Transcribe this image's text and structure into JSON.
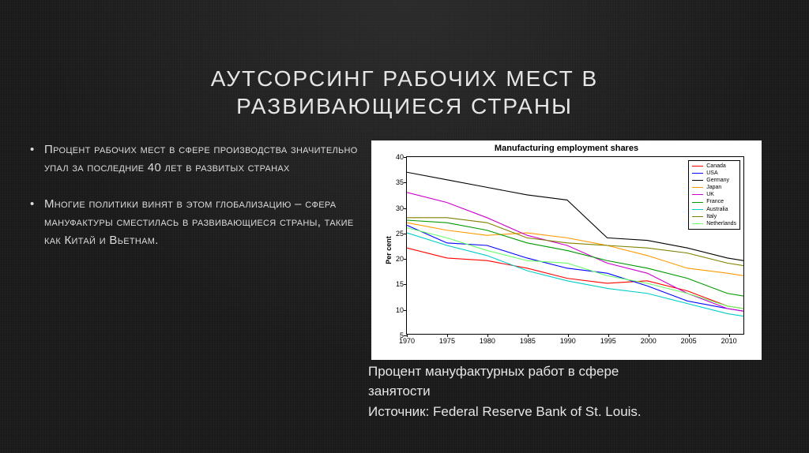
{
  "title_line1": "АУТСОРСИНГ РАБОЧИХ МЕСТ В",
  "title_line2": "РАЗВИВАЮЩИЕСЯ СТРАНЫ",
  "bullets": [
    "Процент  рабочих мест в сфере производства значительно упал за последние 40 лет в развитых странах",
    "Многие политики винят в этом глобализацию – сфера мануфактуры сместилась в развивающиеся страны, такие как Китай и Вьетнам."
  ],
  "caption_line1": "Процент мануфактурных работ в сфере",
  "caption_line2": "занятости",
  "caption_line3": "Источник: Federal Reserve Bank of St. Louis.",
  "chart": {
    "type": "line",
    "title": "Manufacturing employment shares",
    "ylabel": "Per cent",
    "ylim": [
      5,
      40
    ],
    "ytick_step": 5,
    "xlim": [
      1970,
      2012
    ],
    "xticks": [
      1970,
      1975,
      1980,
      1985,
      1990,
      1995,
      2000,
      2005,
      2010
    ],
    "background_color": "#ffffff",
    "axis_color": "#000000",
    "line_width": 1.1,
    "legend_position": "top-right",
    "series": [
      {
        "name": "Canada",
        "color": "#ff0000",
        "data": [
          [
            1970,
            22.0
          ],
          [
            1975,
            20.0
          ],
          [
            1980,
            19.5
          ],
          [
            1985,
            18.0
          ],
          [
            1990,
            16.0
          ],
          [
            1995,
            15.0
          ],
          [
            2000,
            15.5
          ],
          [
            2005,
            13.5
          ],
          [
            2010,
            10.5
          ],
          [
            2012,
            10.0
          ]
        ]
      },
      {
        "name": "USA",
        "color": "#0000ff",
        "data": [
          [
            1970,
            26.5
          ],
          [
            1975,
            23.0
          ],
          [
            1980,
            22.5
          ],
          [
            1985,
            20.0
          ],
          [
            1990,
            18.0
          ],
          [
            1995,
            17.0
          ],
          [
            2000,
            14.5
          ],
          [
            2005,
            11.5
          ],
          [
            2010,
            10.0
          ],
          [
            2012,
            9.5
          ]
        ]
      },
      {
        "name": "Germany",
        "color": "#000000",
        "data": [
          [
            1970,
            37.0
          ],
          [
            1975,
            35.5
          ],
          [
            1980,
            34.0
          ],
          [
            1985,
            32.5
          ],
          [
            1990,
            31.5
          ],
          [
            1991,
            30.0
          ],
          [
            1995,
            24.0
          ],
          [
            2000,
            23.5
          ],
          [
            2005,
            22.0
          ],
          [
            2010,
            20.0
          ],
          [
            2012,
            19.5
          ]
        ]
      },
      {
        "name": "Japan",
        "color": "#ff9900",
        "data": [
          [
            1970,
            27.0
          ],
          [
            1975,
            25.5
          ],
          [
            1980,
            24.5
          ],
          [
            1985,
            25.0
          ],
          [
            1990,
            24.0
          ],
          [
            1995,
            22.5
          ],
          [
            2000,
            20.5
          ],
          [
            2005,
            18.0
          ],
          [
            2010,
            17.0
          ],
          [
            2012,
            16.5
          ]
        ]
      },
      {
        "name": "UK",
        "color": "#cc00cc",
        "data": [
          [
            1970,
            33.0
          ],
          [
            1975,
            31.0
          ],
          [
            1980,
            28.0
          ],
          [
            1985,
            24.5
          ],
          [
            1990,
            22.5
          ],
          [
            1995,
            19.0
          ],
          [
            2000,
            17.0
          ],
          [
            2005,
            13.0
          ],
          [
            2010,
            10.0
          ],
          [
            2012,
            9.5
          ]
        ]
      },
      {
        "name": "France",
        "color": "#009900",
        "data": [
          [
            1970,
            27.5
          ],
          [
            1975,
            27.0
          ],
          [
            1980,
            25.5
          ],
          [
            1985,
            23.0
          ],
          [
            1990,
            21.5
          ],
          [
            1995,
            19.5
          ],
          [
            2000,
            18.0
          ],
          [
            2005,
            16.0
          ],
          [
            2010,
            13.0
          ],
          [
            2012,
            12.5
          ]
        ]
      },
      {
        "name": "Australia",
        "color": "#00cccc",
        "data": [
          [
            1970,
            25.0
          ],
          [
            1975,
            22.5
          ],
          [
            1980,
            20.5
          ],
          [
            1985,
            17.5
          ],
          [
            1990,
            15.5
          ],
          [
            1995,
            14.0
          ],
          [
            2000,
            13.0
          ],
          [
            2005,
            11.0
          ],
          [
            2010,
            9.0
          ],
          [
            2012,
            8.5
          ]
        ]
      },
      {
        "name": "Italy",
        "color": "#808000",
        "data": [
          [
            1970,
            28.0
          ],
          [
            1975,
            28.0
          ],
          [
            1980,
            27.0
          ],
          [
            1985,
            24.0
          ],
          [
            1990,
            23.0
          ],
          [
            1995,
            22.5
          ],
          [
            2000,
            22.0
          ],
          [
            2005,
            21.0
          ],
          [
            2010,
            19.0
          ],
          [
            2012,
            18.5
          ]
        ]
      },
      {
        "name": "Netherlands",
        "color": "#66ff66",
        "data": [
          [
            1970,
            26.0
          ],
          [
            1975,
            24.0
          ],
          [
            1980,
            21.5
          ],
          [
            1985,
            19.5
          ],
          [
            1990,
            19.0
          ],
          [
            1995,
            16.5
          ],
          [
            2000,
            15.0
          ],
          [
            2005,
            13.0
          ],
          [
            2010,
            10.5
          ],
          [
            2012,
            10.0
          ]
        ]
      }
    ]
  }
}
